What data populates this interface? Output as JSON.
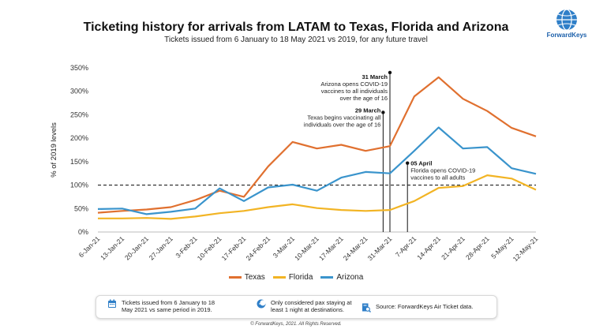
{
  "chart_data": {
    "type": "line",
    "title": "Ticketing history for arrivals from LATAM to Texas, Florida and Arizona",
    "subtitle": "Tickets issued from 6 January to 18 May 2021 vs 2019, for any future travel",
    "ylabel": "% of 2019 levels",
    "ylim": [
      0,
      350
    ],
    "yticks": [
      "0%",
      "50%",
      "100%",
      "150%",
      "200%",
      "250%",
      "300%",
      "350%"
    ],
    "categories": [
      "6-Jan-21",
      "13-Jan-21",
      "20-Jan-21",
      "27-Jan-21",
      "3-Feb-21",
      "10-Feb-21",
      "17-Feb-21",
      "24-Feb-21",
      "3-Mar-21",
      "10-Mar-21",
      "17-Mar-21",
      "24-Mar-21",
      "31-Mar-21",
      "7-Apr-21",
      "14-Apr-21",
      "21-Apr-21",
      "28-Apr-21",
      "5-May-21",
      "12-May-21"
    ],
    "series": [
      {
        "name": "Texas",
        "color": "#e0702f",
        "values": [
          41,
          45,
          48,
          53,
          68,
          88,
          75,
          140,
          192,
          178,
          186,
          173,
          183,
          289,
          330,
          284,
          258,
          222,
          204
        ]
      },
      {
        "name": "Florida",
        "color": "#f2b424",
        "values": [
          29,
          29,
          30,
          28,
          33,
          40,
          45,
          53,
          59,
          51,
          47,
          45,
          47,
          66,
          94,
          98,
          121,
          114,
          90
        ]
      },
      {
        "name": "Arizona",
        "color": "#3a94cc",
        "values": [
          49,
          50,
          38,
          43,
          50,
          93,
          66,
          95,
          101,
          88,
          116,
          128,
          125,
          173,
          223,
          178,
          181,
          136,
          124
        ]
      }
    ],
    "reference_line": {
      "value": 100,
      "style": "dashed"
    },
    "annotations": [
      {
        "x": 11.72,
        "date": "29 March",
        "lines": [
          "Texas begins vaccinating all",
          "individuals over the age of 16"
        ],
        "align": "right"
      },
      {
        "x": 12.0,
        "date": "31 March",
        "lines": [
          "Arizona opens COVID-19",
          "vaccines to all individuals",
          "over the age of 16"
        ],
        "align": "right"
      },
      {
        "x": 12.72,
        "date": "05 April",
        "lines": [
          "Florida opens COVID-19",
          "vaccines to all adults"
        ],
        "align": "left"
      }
    ],
    "legend_position": "bottom",
    "grid": false
  },
  "logo": {
    "brand": "ForwardKeys"
  },
  "info": [
    {
      "icon": "calendar-icon",
      "text": [
        "Tickets issued from 6 January to 18",
        "May 2021 vs same period in 2019."
      ]
    },
    {
      "icon": "moon-icon",
      "text": [
        "Only considered pax staying at",
        "least 1 night at destinations."
      ]
    },
    {
      "icon": "search-document-icon",
      "text": [
        "Source: ForwardKeys Air Ticket data."
      ]
    }
  ],
  "footer": "© ForwardKeys, 2021. All Rights Reserved."
}
